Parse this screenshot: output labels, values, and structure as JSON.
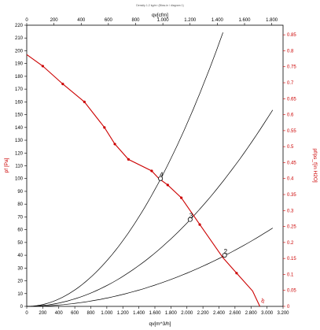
{
  "chart_data": {
    "type": "line",
    "title": "Density 1.2 kg/m³ (Blow-in / diagram 1)",
    "xlabel_bottom": "qv[m^3/h]",
    "xlabel_top": "qv[cfm]",
    "ylabel_left": "pf [Pa]",
    "ylabel_right": "pf/ps_f[in H2O]",
    "curve_label": "pf",
    "xlim_bottom": [
      0,
      3200
    ],
    "xlim_top": [
      0,
      1883
    ],
    "ylim_left": [
      0,
      220
    ],
    "ylim_right": [
      0,
      0.88
    ],
    "x_ticks_bottom": [
      "0",
      "200",
      "400",
      "600",
      "800",
      "1.000",
      "1.200",
      "1.400",
      "1.600",
      "1.800",
      "2.000",
      "2.200",
      "2.400",
      "2.600",
      "2.800",
      "3.000",
      "3.200"
    ],
    "x_ticks_top": [
      "0",
      "200",
      "400",
      "600",
      "800",
      "1.000",
      "1.200",
      "1.400",
      "1.600",
      "1.800"
    ],
    "y_ticks_left": [
      "0",
      "10",
      "20",
      "30",
      "40",
      "50",
      "60",
      "70",
      "80",
      "90",
      "100",
      "110",
      "120",
      "130",
      "140",
      "150",
      "160",
      "170",
      "180",
      "190",
      "200",
      "210",
      "220"
    ],
    "y_ticks_right": [
      "0",
      "0.05",
      "0.1",
      "0.15",
      "0.2",
      "0.25",
      "0.3",
      "0.35",
      "0.4",
      "0.45",
      "0.5",
      "0.55",
      "0.6",
      "0.65",
      "0.7",
      "0.75",
      "0.8",
      "0.85"
    ],
    "series": [
      {
        "name": "pf",
        "color": "#cc0000",
        "x": [
          0,
          200,
          450,
          720,
          970,
          1100,
          1270,
          1560,
          1650,
          1760,
          1930,
          2160,
          2450,
          2620,
          2820,
          2910
        ],
        "y": [
          197,
          188,
          174,
          160,
          140,
          127,
          115,
          106,
          100,
          95,
          85,
          64,
          38,
          26,
          12,
          0
        ],
        "markers": [
          200,
          450,
          720,
          970,
          1100,
          1270,
          1560,
          1760,
          1930,
          2160,
          2620
        ]
      }
    ],
    "system_curves": [
      {
        "name": "4",
        "color": "#000000",
        "k": 3.57e-05,
        "x_end": 2450
      },
      {
        "name": "3",
        "color": "#000000",
        "k": 1.63e-05,
        "x_end": 3070
      },
      {
        "name": "2",
        "color": "#000000",
        "k": 6.5e-06,
        "x_end": 3070
      }
    ],
    "operating_points": [
      {
        "label": "4",
        "x": 1670,
        "y": 100
      },
      {
        "label": "3",
        "x": 2040,
        "y": 68
      },
      {
        "label": "2",
        "x": 2470,
        "y": 40
      }
    ]
  }
}
